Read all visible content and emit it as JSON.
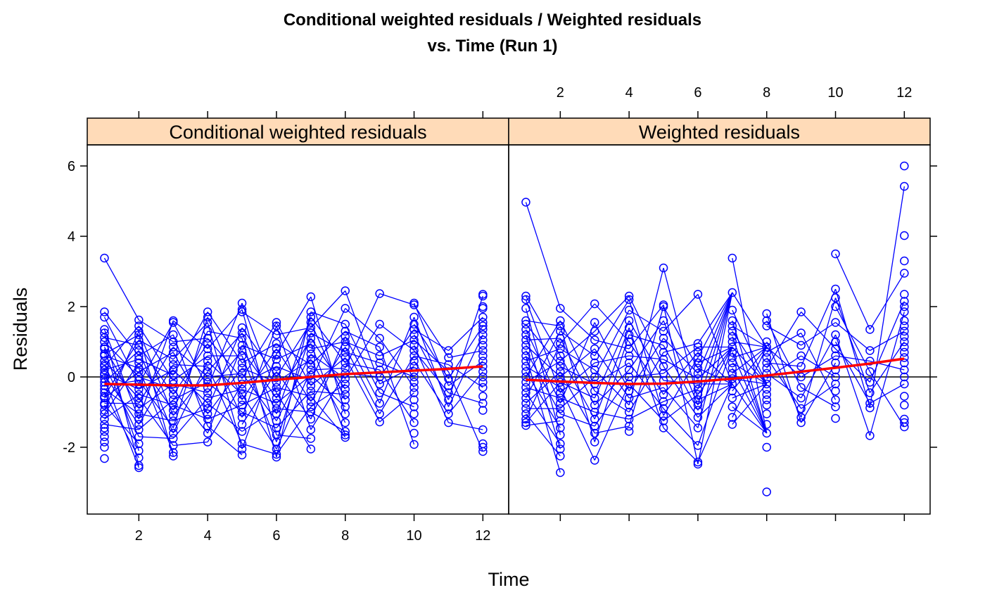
{
  "title_line1": "Conditional weighted residuals / Weighted residuals",
  "title_line2": "vs. Time (Run 1)",
  "xlabel": "Time",
  "ylabel": "Residuals",
  "colors": {
    "points": "#0000ff",
    "smooth": "#ff0000",
    "strip": "#ffdbb8",
    "zero_line": "#000000"
  },
  "chart_data": [
    {
      "type": "line",
      "panel": "Conditional weighted residuals",
      "xlim": [
        0.5,
        12.75
      ],
      "ylim": [
        -3.9,
        6.6
      ],
      "x_ticks": [
        2,
        4,
        6,
        8,
        10,
        12
      ],
      "y_ticks": [
        -2,
        0,
        2,
        4,
        6
      ],
      "reference_line_y": 0,
      "smooth": {
        "x": [
          1,
          2,
          3,
          4,
          5,
          6,
          7,
          8,
          9,
          10,
          11,
          12
        ],
        "y": [
          -0.2,
          -0.22,
          -0.24,
          -0.24,
          -0.17,
          -0.08,
          0.0,
          0.08,
          0.13,
          0.18,
          0.23,
          0.3
        ]
      },
      "points": {
        "1": [
          3.38,
          1.85,
          1.7,
          1.35,
          1.25,
          1.12,
          1.0,
          0.85,
          0.8,
          0.65,
          0.6,
          0.45,
          0.35,
          0.3,
          0.2,
          0.1,
          0.05,
          -0.05,
          -0.15,
          -0.25,
          -0.35,
          -0.45,
          -0.55,
          -0.6,
          -0.75,
          -0.8,
          -0.95,
          -1.05,
          -1.2,
          -1.35,
          -1.45,
          -1.55,
          -1.7,
          -1.85,
          -2.0,
          -2.32
        ],
        "2": [
          1.62,
          1.45,
          1.3,
          1.2,
          1.05,
          0.9,
          0.75,
          0.6,
          0.5,
          0.4,
          0.25,
          0.15,
          0.0,
          -0.1,
          -0.2,
          -0.35,
          -0.5,
          -0.6,
          -0.75,
          -0.9,
          -1.05,
          -1.2,
          -1.35,
          -1.5,
          -1.7,
          -1.9,
          -2.1,
          -2.3,
          -2.52,
          -2.58
        ],
        "3": [
          1.6,
          1.55,
          1.2,
          1.0,
          0.85,
          0.7,
          0.5,
          0.35,
          0.2,
          0.05,
          -0.1,
          -0.2,
          -0.35,
          -0.5,
          -0.65,
          -0.8,
          -0.95,
          -1.1,
          -1.25,
          -1.45,
          -1.6,
          -1.75,
          -1.95,
          -2.15,
          -2.25
        ],
        "4": [
          1.85,
          1.7,
          1.55,
          1.3,
          1.1,
          0.95,
          0.8,
          0.6,
          0.45,
          0.3,
          0.15,
          0.0,
          -0.15,
          -0.3,
          -0.45,
          -0.6,
          -0.75,
          -0.9,
          -1.05,
          -1.2,
          -1.4,
          -1.6,
          -1.85
        ],
        "5": [
          2.1,
          1.92,
          1.85,
          1.4,
          1.25,
          1.1,
          0.9,
          0.75,
          0.6,
          0.4,
          0.25,
          0.1,
          -0.05,
          -0.2,
          -0.35,
          -0.5,
          -0.65,
          -0.8,
          -1.0,
          -1.15,
          -1.35,
          -1.55,
          -1.9,
          -2.05,
          -2.22
        ],
        "6": [
          1.55,
          1.45,
          1.2,
          0.95,
          0.8,
          0.65,
          0.5,
          0.3,
          0.15,
          0.0,
          -0.15,
          -0.3,
          -0.45,
          -0.6,
          -0.75,
          -0.9,
          -1.05,
          -1.25,
          -1.45,
          -1.65,
          -1.85,
          -2.05,
          -2.2,
          -2.28
        ],
        "7": [
          2.28,
          1.85,
          1.7,
          1.55,
          1.4,
          1.25,
          1.1,
          0.95,
          0.8,
          0.65,
          0.5,
          0.35,
          0.2,
          0.05,
          -0.1,
          -0.25,
          -0.4,
          -0.55,
          -0.7,
          -0.85,
          -1.0,
          -1.2,
          -1.5,
          -1.75,
          -2.05
        ],
        "8": [
          2.45,
          1.95,
          1.5,
          1.3,
          1.15,
          1.0,
          0.85,
          0.7,
          0.55,
          0.4,
          0.25,
          0.1,
          -0.05,
          -0.2,
          -0.35,
          -0.5,
          -0.65,
          -0.85,
          -1.05,
          -1.3,
          -1.55,
          -1.65,
          -1.72
        ],
        "9": [
          2.37,
          1.5,
          1.1,
          0.85,
          0.6,
          0.4,
          0.2,
          0.0,
          -0.2,
          -0.45,
          -0.75,
          -1.05,
          -1.28
        ],
        "10": [
          2.1,
          2.05,
          1.7,
          1.5,
          1.35,
          1.2,
          1.05,
          0.9,
          0.75,
          0.6,
          0.45,
          0.3,
          0.15,
          0.0,
          -0.15,
          -0.3,
          -0.45,
          -0.65,
          -0.85,
          -1.05,
          -1.3,
          -1.6,
          -1.92
        ],
        "11": [
          0.75,
          0.55,
          0.35,
          0.15,
          -0.05,
          -0.25,
          -0.45,
          -0.65,
          -0.85,
          -1.05,
          -1.3
        ],
        "12": [
          2.35,
          2.3,
          2.0,
          1.95,
          1.7,
          1.55,
          1.45,
          1.35,
          1.2,
          1.05,
          0.9,
          0.75,
          0.6,
          0.45,
          0.3,
          0.15,
          0.0,
          -0.15,
          -0.3,
          -0.55,
          -0.75,
          -0.95,
          -1.5,
          -1.9,
          -2.0,
          -2.12
        ]
      }
    },
    {
      "type": "line",
      "panel": "Weighted residuals",
      "xlim": [
        0.5,
        12.75
      ],
      "ylim": [
        -3.9,
        6.6
      ],
      "x_ticks": [
        2,
        4,
        6,
        8,
        10,
        12
      ],
      "y_ticks": [
        -2,
        0,
        2,
        4,
        6
      ],
      "reference_line_y": 0,
      "smooth": {
        "x": [
          1,
          2,
          3,
          4,
          5,
          6,
          7,
          8,
          9,
          10,
          11,
          12
        ],
        "y": [
          -0.08,
          -0.13,
          -0.17,
          -0.2,
          -0.19,
          -0.13,
          -0.05,
          0.04,
          0.15,
          0.26,
          0.38,
          0.52
        ]
      },
      "points": {
        "1": [
          4.97,
          2.3,
          2.2,
          1.95,
          1.6,
          1.5,
          1.35,
          1.2,
          1.05,
          0.9,
          0.75,
          0.6,
          0.45,
          0.3,
          0.15,
          0.0,
          -0.15,
          -0.3,
          -0.45,
          -0.6,
          -0.75,
          -0.9,
          -1.05,
          -1.2,
          -1.3,
          -1.38
        ],
        "2": [
          1.95,
          1.6,
          1.45,
          1.3,
          1.1,
          0.95,
          0.8,
          0.6,
          0.45,
          0.3,
          0.15,
          0.0,
          -0.15,
          -0.3,
          -0.45,
          -0.6,
          -0.75,
          -0.9,
          -1.05,
          -1.25,
          -1.45,
          -1.65,
          -1.9,
          -2.05,
          -2.25,
          -2.72
        ],
        "3": [
          2.08,
          1.55,
          1.3,
          1.05,
          0.8,
          0.6,
          0.4,
          0.2,
          0.0,
          -0.2,
          -0.4,
          -0.6,
          -0.8,
          -1.0,
          -1.2,
          -1.4,
          -1.6,
          -1.85,
          -2.37
        ],
        "4": [
          2.3,
          2.2,
          1.9,
          1.6,
          1.4,
          1.2,
          1.0,
          0.8,
          0.6,
          0.4,
          0.2,
          0.0,
          -0.2,
          -0.4,
          -0.6,
          -0.8,
          -1.0,
          -1.2,
          -1.4,
          -1.55
        ],
        "5": [
          3.1,
          2.05,
          2.0,
          1.6,
          1.3,
          1.1,
          0.9,
          0.7,
          0.5,
          0.3,
          0.1,
          -0.1,
          -0.3,
          -0.5,
          -0.7,
          -0.9,
          -1.1,
          -1.25,
          -1.45
        ],
        "6": [
          2.35,
          0.95,
          0.85,
          0.7,
          0.55,
          0.4,
          0.25,
          0.1,
          -0.05,
          -0.2,
          -0.35,
          -0.5,
          -0.65,
          -0.8,
          -0.95,
          -1.15,
          -1.45,
          -1.95,
          -2.42,
          -2.48
        ],
        "7": [
          3.38,
          2.4,
          1.9,
          1.6,
          1.45,
          1.3,
          1.15,
          1.0,
          0.85,
          0.7,
          0.55,
          0.4,
          0.25,
          0.1,
          -0.05,
          -0.2,
          -0.4,
          -0.6,
          -0.85,
          -1.15,
          -1.35
        ],
        "8": [
          1.8,
          1.6,
          1.45,
          1.0,
          0.85,
          0.7,
          0.55,
          0.4,
          0.25,
          0.1,
          -0.05,
          -0.2,
          -0.35,
          -0.5,
          -0.65,
          -0.8,
          -1.05,
          -1.35,
          -1.6,
          -2.0,
          -3.27
        ],
        "9": [
          1.85,
          1.25,
          0.9,
          0.6,
          0.3,
          0.0,
          -0.3,
          -0.6,
          -0.9,
          -1.15,
          -1.3
        ],
        "10": [
          3.5,
          2.5,
          2.25,
          2.0,
          1.55,
          1.2,
          1.0,
          0.8,
          0.6,
          0.4,
          0.2,
          0.0,
          -0.2,
          -0.4,
          -0.65,
          -0.85,
          -1.18
        ],
        "11": [
          1.35,
          0.75,
          0.45,
          0.15,
          -0.15,
          -0.45,
          -0.75,
          -0.88,
          -1.67
        ],
        "12": [
          6.0,
          5.42,
          4.02,
          3.3,
          2.95,
          2.35,
          2.15,
          2.0,
          1.85,
          1.6,
          1.45,
          1.3,
          1.15,
          1.0,
          0.85,
          0.7,
          0.55,
          0.4,
          0.2,
          0.0,
          -0.2,
          -0.55,
          -0.8,
          -1.2,
          -1.3,
          -1.42
        ]
      }
    }
  ]
}
